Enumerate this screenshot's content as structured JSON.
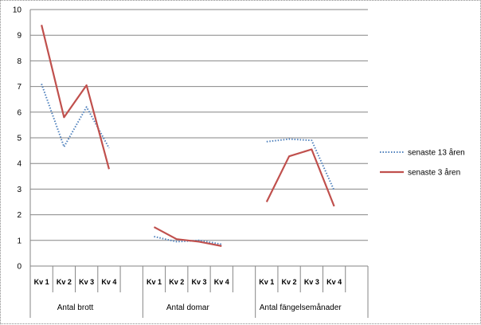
{
  "chart_data": {
    "type": "line",
    "ylim": [
      0,
      10
    ],
    "y_ticks": [
      0,
      1,
      2,
      3,
      4,
      5,
      6,
      7,
      8,
      9,
      10
    ],
    "grid": true,
    "legend_position": "right",
    "groups": [
      {
        "label": "Antal brott",
        "categories": [
          "Kv 1",
          "Kv 2",
          "Kv 3",
          "Kv 4"
        ]
      },
      {
        "label": "Antal domar",
        "categories": [
          "Kv 1",
          "Kv 2",
          "Kv 3",
          "Kv 4"
        ]
      },
      {
        "label": "Antal fängelsemånader",
        "categories": [
          "Kv 1",
          "Kv 2",
          "Kv 3",
          "Kv 4"
        ]
      }
    ],
    "series": [
      {
        "name": "senaste 13 åren",
        "style": "dotted",
        "color": "#4f81bd",
        "values": [
          [
            7.1,
            4.65,
            6.2,
            4.6
          ],
          [
            1.15,
            0.95,
            1.0,
            0.85
          ],
          [
            4.85,
            4.95,
            4.9,
            2.95
          ]
        ]
      },
      {
        "name": "senaste 3 åren",
        "style": "solid",
        "color": "#c0504d",
        "values": [
          [
            9.4,
            5.8,
            7.05,
            3.78
          ],
          [
            1.52,
            1.05,
            0.95,
            0.78
          ],
          [
            2.5,
            4.28,
            4.55,
            2.33
          ]
        ]
      }
    ]
  }
}
